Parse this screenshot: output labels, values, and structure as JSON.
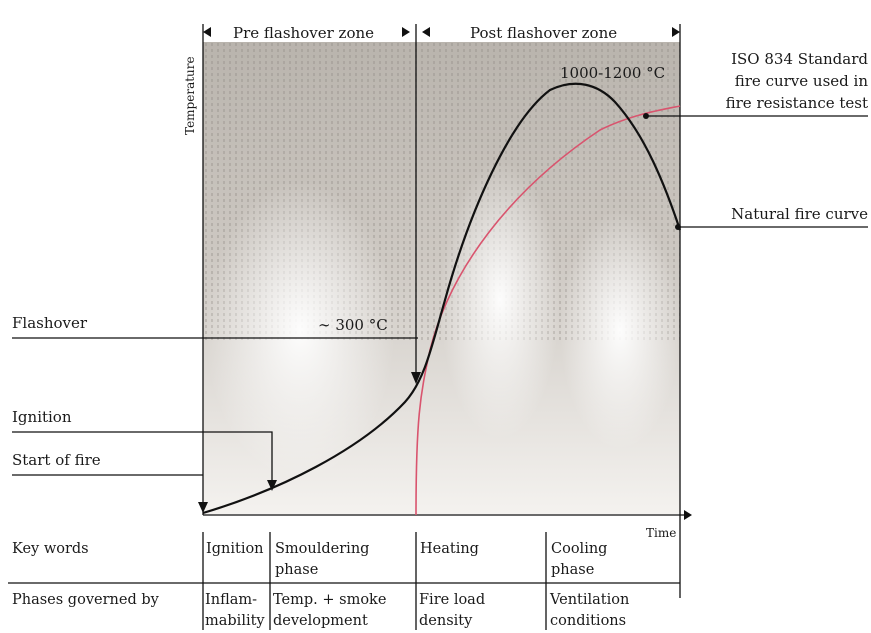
{
  "zones": {
    "pre": "Pre flashover zone",
    "post": "Post flashover zone"
  },
  "axes": {
    "y": "Temperature",
    "x": "Time"
  },
  "annotations": {
    "peak": "1000-1200 °C",
    "iso_line1": "ISO 834 Standard",
    "iso_line2": "fire curve used in",
    "iso_line3": "fire resistance test",
    "natural": "Natural fire curve",
    "flashover": "Flashover",
    "flashover_temp": "∼ 300 °C",
    "ignition": "Ignition",
    "start": "Start of fire"
  },
  "table": {
    "row1_header": "Key words",
    "row2_header": "Phases governed by",
    "phases": [
      {
        "key_line1": "Ignition",
        "key_line2": "",
        "gov_line1": "Inflam-",
        "gov_line2": "mability"
      },
      {
        "key_line1": "Smouldering",
        "key_line2": "phase",
        "gov_line1": "Temp. + smoke",
        "gov_line2": "development"
      },
      {
        "key_line1": "Heating",
        "key_line2": "",
        "gov_line1": "Fire load",
        "gov_line2": "density"
      },
      {
        "key_line1": "Cooling",
        "key_line2": "phase",
        "gov_line1": "Ventilation",
        "gov_line2": "conditions"
      }
    ]
  },
  "colors": {
    "natural_curve": "#111111",
    "iso_curve": "#d9546e",
    "background_photo": "#c9c4be"
  }
}
